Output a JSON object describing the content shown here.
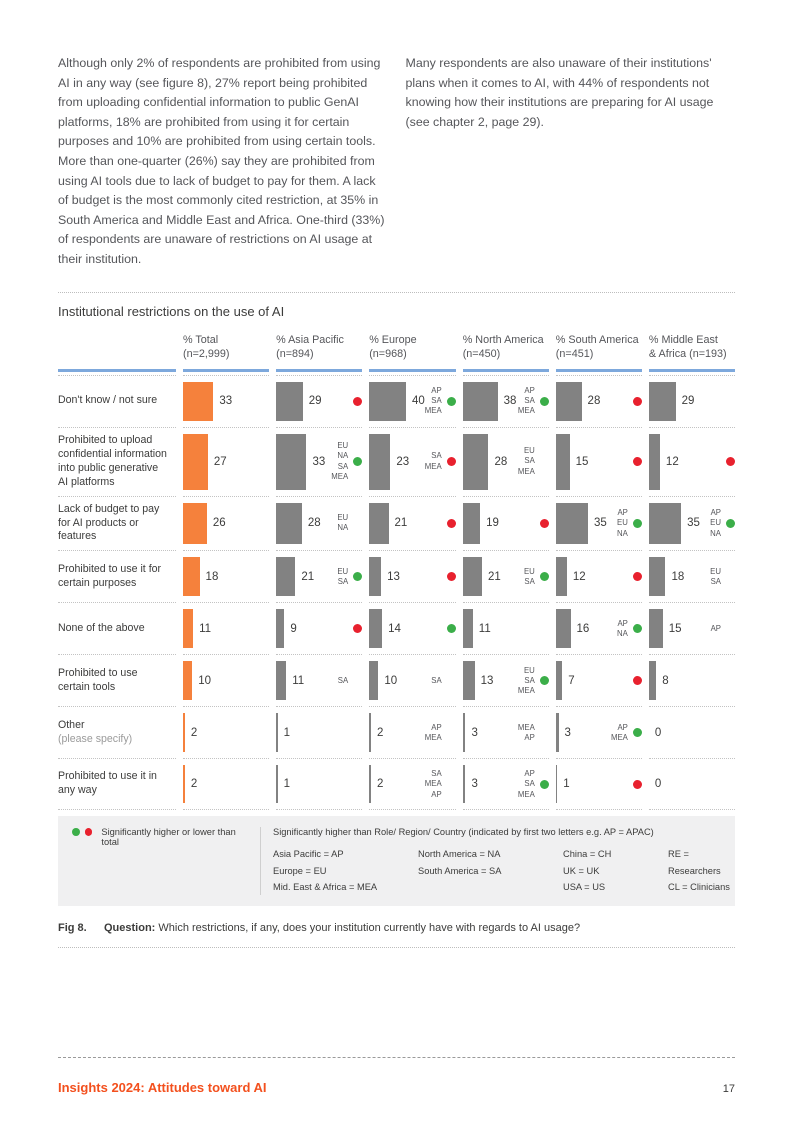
{
  "intro": {
    "col1": "Although only 2% of respondents are prohibited from using AI in any way (see figure 8), 27% report being prohibited from uploading confidential information to public GenAI platforms, 18% are prohibited from using it for certain purposes and 10% are prohibited from using certain tools. More than one-quarter (26%) say they are prohibited from using AI tools due to lack of budget to pay for them. A lack of budget is the most commonly cited restriction, at 35% in South America and Middle East and Africa. One-third (33%) of respondents are unaware of restrictions on AI usage at their institution.",
    "col2": "Many respondents are also unaware of their institutions' plans when it comes to AI, with 44% of respondents not knowing how their institutions are preparing for AI usage (see chapter 2, page 29)."
  },
  "chart": {
    "title": "Institutional restrictions on the use of AI",
    "colors": {
      "total_bar": "#f5813c",
      "region_bar": "#828282",
      "dot_green": "#3bae49",
      "dot_red": "#e8212e",
      "header_underline": "#7da8dc"
    },
    "columns": [
      {
        "line1": "% Total",
        "line2": "(n=2,999)"
      },
      {
        "line1": "% Asia Pacific",
        "line2": "(n=894)"
      },
      {
        "line1": "% Europe",
        "line2": "(n=968)"
      },
      {
        "line1": "% North America",
        "line2": "(n=450)"
      },
      {
        "line1": "% South America",
        "line2": "(n=451)"
      },
      {
        "line1": "% Middle East",
        "line2": "& Africa (n=193)"
      }
    ],
    "rows": [
      {
        "label": "Don't know / not sure",
        "sublabel": "",
        "cells": [
          {
            "value": 33,
            "codes": [],
            "dot": null
          },
          {
            "value": 29,
            "codes": [],
            "dot": "red"
          },
          {
            "value": 40,
            "codes": [
              "AP",
              "SA",
              "MEA"
            ],
            "dot": "green"
          },
          {
            "value": 38,
            "codes": [
              "AP",
              "SA",
              "MEA"
            ],
            "dot": "green"
          },
          {
            "value": 28,
            "codes": [],
            "dot": "red"
          },
          {
            "value": 29,
            "codes": [],
            "dot": null
          }
        ]
      },
      {
        "label": "Prohibited to upload confidential information into public generative AI platforms",
        "sublabel": "",
        "cells": [
          {
            "value": 27,
            "codes": [],
            "dot": null
          },
          {
            "value": 33,
            "codes": [
              "EU",
              "NA",
              "SA",
              "MEA"
            ],
            "dot": "green"
          },
          {
            "value": 23,
            "codes": [
              "SA",
              "MEA"
            ],
            "dot": "red"
          },
          {
            "value": 28,
            "codes": [
              "EU",
              "SA",
              "MEA"
            ],
            "dot": null
          },
          {
            "value": 15,
            "codes": [],
            "dot": "red"
          },
          {
            "value": 12,
            "codes": [],
            "dot": "red"
          }
        ]
      },
      {
        "label": "Lack of budget to pay for AI products or features",
        "sublabel": "",
        "cells": [
          {
            "value": 26,
            "codes": [],
            "dot": null
          },
          {
            "value": 28,
            "codes": [
              "EU",
              "NA"
            ],
            "dot": null
          },
          {
            "value": 21,
            "codes": [],
            "dot": "red"
          },
          {
            "value": 19,
            "codes": [],
            "dot": "red"
          },
          {
            "value": 35,
            "codes": [
              "AP",
              "EU",
              "NA"
            ],
            "dot": "green"
          },
          {
            "value": 35,
            "codes": [
              "AP",
              "EU",
              "NA"
            ],
            "dot": "green"
          }
        ]
      },
      {
        "label": "Prohibited to use it for certain purposes",
        "sublabel": "",
        "cells": [
          {
            "value": 18,
            "codes": [],
            "dot": null
          },
          {
            "value": 21,
            "codes": [
              "EU",
              "SA"
            ],
            "dot": "green"
          },
          {
            "value": 13,
            "codes": [],
            "dot": "red"
          },
          {
            "value": 21,
            "codes": [
              "EU",
              "SA"
            ],
            "dot": "green"
          },
          {
            "value": 12,
            "codes": [],
            "dot": "red"
          },
          {
            "value": 18,
            "codes": [
              "EU",
              "SA"
            ],
            "dot": null
          }
        ]
      },
      {
        "label": "None of the above",
        "sublabel": "",
        "cells": [
          {
            "value": 11,
            "codes": [],
            "dot": null
          },
          {
            "value": 9,
            "codes": [],
            "dot": "red"
          },
          {
            "value": 14,
            "codes": [],
            "dot": "green"
          },
          {
            "value": 11,
            "codes": [],
            "dot": null
          },
          {
            "value": 16,
            "codes": [
              "AP",
              "NA"
            ],
            "dot": "green"
          },
          {
            "value": 15,
            "codes": [
              "AP"
            ],
            "dot": null
          }
        ]
      },
      {
        "label": "Prohibited to use certain tools",
        "sublabel": "",
        "cells": [
          {
            "value": 10,
            "codes": [],
            "dot": null
          },
          {
            "value": 11,
            "codes": [
              "SA"
            ],
            "dot": null
          },
          {
            "value": 10,
            "codes": [
              "SA"
            ],
            "dot": null
          },
          {
            "value": 13,
            "codes": [
              "EU",
              "SA",
              "MEA"
            ],
            "dot": "green"
          },
          {
            "value": 7,
            "codes": [],
            "dot": "red"
          },
          {
            "value": 8,
            "codes": [],
            "dot": null
          }
        ]
      },
      {
        "label": "Other",
        "sublabel": "(please specify)",
        "cells": [
          {
            "value": 2,
            "codes": [],
            "dot": null
          },
          {
            "value": 1,
            "codes": [],
            "dot": null
          },
          {
            "value": 2,
            "codes": [
              "AP",
              "MEA"
            ],
            "dot": null
          },
          {
            "value": 3,
            "codes": [
              "MEA",
              "AP"
            ],
            "dot": null
          },
          {
            "value": 3,
            "codes": [
              "AP",
              "MEA"
            ],
            "dot": "green"
          },
          {
            "value": 0,
            "codes": [],
            "dot": null
          }
        ]
      },
      {
        "label": "Prohibited to use it in any way",
        "sublabel": "",
        "cells": [
          {
            "value": 2,
            "codes": [],
            "dot": null
          },
          {
            "value": 1,
            "codes": [],
            "dot": null
          },
          {
            "value": 2,
            "codes": [
              "SA",
              "MEA",
              "AP"
            ],
            "dot": null
          },
          {
            "value": 3,
            "codes": [
              "AP",
              "SA",
              "MEA"
            ],
            "dot": "green"
          },
          {
            "value": 1,
            "codes": [],
            "dot": "red"
          },
          {
            "value": 0,
            "codes": [],
            "dot": null
          }
        ]
      }
    ]
  },
  "chart_data": {
    "type": "bar",
    "orientation": "horizontal",
    "title": "Institutional restrictions on the use of AI",
    "categories": [
      "Don't know / not sure",
      "Prohibited to upload confidential information into public generative AI platforms",
      "Lack of budget to pay for AI products or features",
      "Prohibited to use it for certain purposes",
      "None of the above",
      "Prohibited to use certain tools",
      "Other (please specify)",
      "Prohibited to use it in any way"
    ],
    "series": [
      {
        "name": "% Total (n=2,999)",
        "values": [
          33,
          27,
          26,
          18,
          11,
          10,
          2,
          2
        ]
      },
      {
        "name": "% Asia Pacific (n=894)",
        "values": [
          29,
          33,
          28,
          21,
          9,
          11,
          1,
          1
        ]
      },
      {
        "name": "% Europe (n=968)",
        "values": [
          40,
          23,
          21,
          13,
          14,
          10,
          2,
          2
        ]
      },
      {
        "name": "% North America (n=450)",
        "values": [
          38,
          28,
          19,
          21,
          11,
          13,
          3,
          3
        ]
      },
      {
        "name": "% South America (n=451)",
        "values": [
          28,
          15,
          35,
          12,
          16,
          7,
          3,
          1
        ]
      },
      {
        "name": "% Middle East & Africa (n=193)",
        "values": [
          29,
          12,
          35,
          18,
          15,
          8,
          0,
          0
        ]
      }
    ],
    "value_unit": "%",
    "xlim": [
      0,
      45
    ],
    "grid": false,
    "legend_position": "bottom",
    "annotations": "Green/red dots mark values significantly higher/lower than total; region codes (AP, EU, NA, SA, MEA) mark regions the value is significantly higher than."
  },
  "legend": {
    "left_label": "Significantly higher or lower than total",
    "right_header": "Significantly higher than Role/ Region/ Country (indicated by first two letters e.g. AP = APAC)",
    "col1": {
      "r1": "Asia Pacific = AP",
      "r2": "Europe = EU",
      "r3": "Mid. East & Africa = MEA"
    },
    "col2": {
      "r1": "North America  = NA",
      "r2": "South America = SA"
    },
    "col3": {
      "r1": "China = CH",
      "r2": "UK = UK",
      "r3": "USA = US"
    },
    "col4": {
      "r1": "RE = Researchers",
      "r2": "CL = Clinicians"
    }
  },
  "caption": {
    "fig": "Fig 8.",
    "q_label": "Question:",
    "text": " Which restrictions, if any, does your institution currently have with regards to AI usage?"
  },
  "footer": {
    "title": "Insights 2024: Attitudes toward AI",
    "page": "17"
  }
}
